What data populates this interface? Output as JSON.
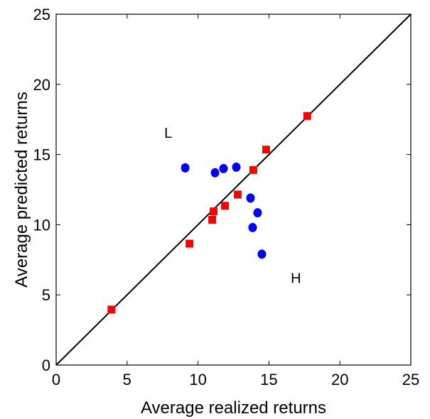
{
  "chart_data": {
    "type": "scatter",
    "title": "",
    "xlabel": "Average realized returns",
    "ylabel": "Average predicted returns",
    "xlim": [
      0,
      25
    ],
    "ylim": [
      0,
      25
    ],
    "xticks": [
      "0",
      "5",
      "10",
      "15",
      "20",
      "25"
    ],
    "yticks": [
      "0",
      "5",
      "10",
      "15",
      "20",
      "25"
    ],
    "grid": false,
    "legend": "none",
    "reference_line": {
      "from": [
        0,
        0
      ],
      "to": [
        25,
        25
      ],
      "color": "#000000"
    },
    "series": [
      {
        "marker": "circle",
        "color": "#0000ff",
        "points": [
          [
            9.1,
            14.05
          ],
          [
            11.2,
            13.7
          ],
          [
            11.8,
            14.0
          ],
          [
            12.7,
            14.1
          ],
          [
            13.7,
            11.9
          ],
          [
            14.2,
            10.85
          ],
          [
            13.85,
            9.8
          ],
          [
            14.5,
            7.9
          ]
        ]
      },
      {
        "marker": "square",
        "color": "#ff0000",
        "points": [
          [
            3.9,
            3.95
          ],
          [
            9.4,
            8.65
          ],
          [
            11.0,
            10.35
          ],
          [
            11.1,
            10.95
          ],
          [
            11.9,
            11.35
          ],
          [
            12.8,
            12.15
          ],
          [
            13.9,
            13.9
          ],
          [
            14.8,
            15.35
          ],
          [
            17.7,
            17.75
          ]
        ]
      }
    ],
    "annotations": [
      {
        "text": "L",
        "x": 7.9,
        "y": 16.2
      },
      {
        "text": "H",
        "x": 16.9,
        "y": 5.85
      }
    ]
  }
}
